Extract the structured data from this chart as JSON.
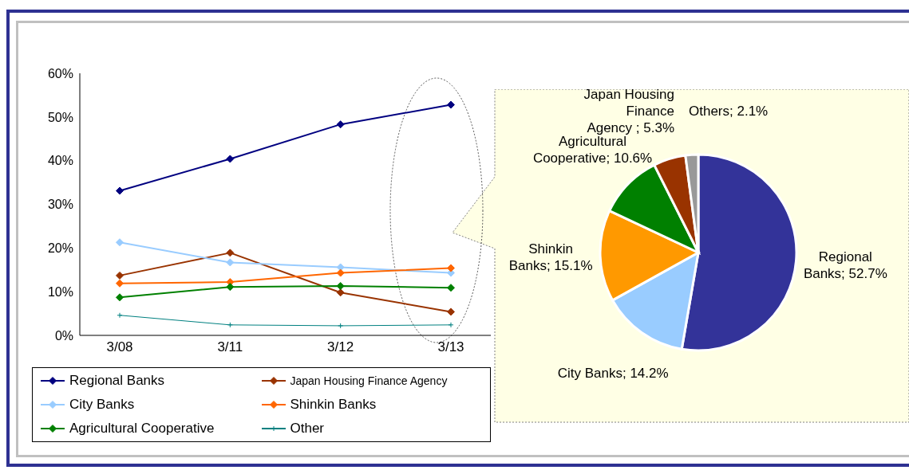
{
  "chart_data": [
    {
      "type": "line",
      "categories": [
        "3/08",
        "3/11",
        "3/12",
        "3/13"
      ],
      "series": [
        {
          "name": "Regional Banks",
          "color": "#000080",
          "values": [
            33.1,
            40.4,
            48.3,
            52.8
          ]
        },
        {
          "name": "Japan Housing Finance Agency",
          "color": "#993300",
          "values": [
            13.7,
            18.9,
            9.8,
            5.4
          ]
        },
        {
          "name": "City Banks",
          "color": "#99ccff",
          "values": [
            21.3,
            16.7,
            15.6,
            14.3
          ]
        },
        {
          "name": "Shinkin Banks",
          "color": "#ff6600",
          "values": [
            11.9,
            12.2,
            14.3,
            15.4
          ]
        },
        {
          "name": "Agricultural Cooperative",
          "color": "#008000",
          "values": [
            8.7,
            11.1,
            11.3,
            10.9
          ]
        },
        {
          "name": "Other",
          "color": "#008080",
          "values": [
            4.6,
            2.4,
            2.2,
            2.4
          ],
          "marker": "cross"
        }
      ],
      "ylim": [
        0,
        60
      ],
      "yticks": [
        {
          "value": 0,
          "label": "0%"
        },
        {
          "value": 10,
          "label": "10%"
        },
        {
          "value": 20,
          "label": "20%"
        },
        {
          "value": 30,
          "label": "30%"
        },
        {
          "value": 40,
          "label": "40%"
        },
        {
          "value": 50,
          "label": "50%"
        },
        {
          "value": 60,
          "label": "60%"
        }
      ],
      "grid": false,
      "legend": "bottom",
      "marker": "diamond",
      "line_style": "solid"
    },
    {
      "type": "pie",
      "categories": [
        "Regional Banks",
        "City Banks",
        "Shinkin Banks",
        "Agricultural Cooperative",
        "Japan Housing Finance Agency ",
        "Others"
      ],
      "values": [
        52.7,
        14.2,
        15.1,
        10.6,
        5.3,
        2.1
      ],
      "value_labels": [
        "52.7%",
        "14.2%",
        "15.1%",
        "10.6%",
        "5.3%",
        "2.1%"
      ],
      "colors": [
        "#333399",
        "#99ccff",
        "#ff9900",
        "#008000",
        "#993300",
        "#999999"
      ]
    }
  ]
}
